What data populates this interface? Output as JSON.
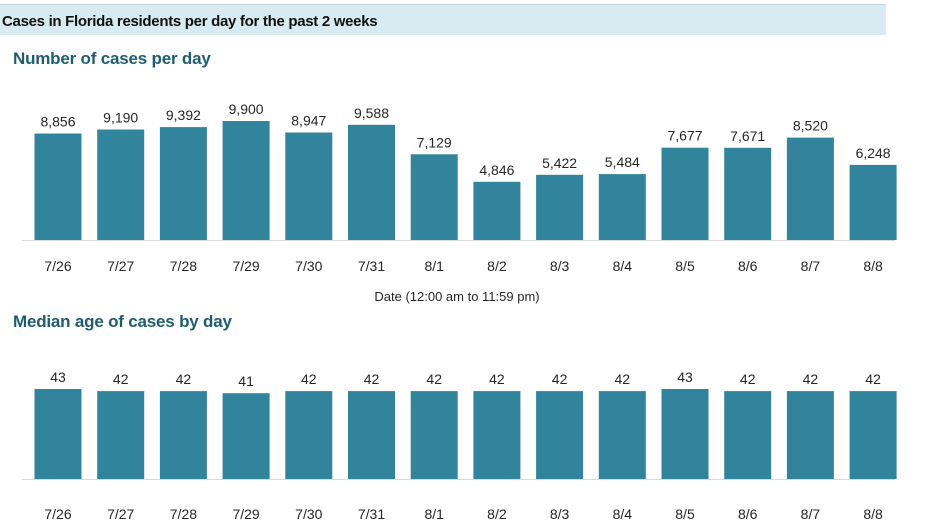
{
  "banner": {
    "title": "Cases in Florida residents per day for the past 2 weeks"
  },
  "chart_data": [
    {
      "type": "bar",
      "title": "Number of cases per day",
      "xlabel": "Date (12:00 am to 11:59 pm)",
      "ylabel": "",
      "categories": [
        "7/26",
        "7/27",
        "7/28",
        "7/29",
        "7/30",
        "7/31",
        "8/1",
        "8/2",
        "8/3",
        "8/4",
        "8/5",
        "8/6",
        "8/7",
        "8/8"
      ],
      "values": [
        8856,
        9190,
        9392,
        9900,
        8947,
        9588,
        7129,
        4846,
        5422,
        5484,
        7677,
        7671,
        8520,
        6248
      ],
      "value_labels": [
        "8,856",
        "9,190",
        "9,392",
        "9,900",
        "8,947",
        "9,588",
        "7,129",
        "4,846",
        "5,422",
        "5,484",
        "7,677",
        "7,671",
        "8,520",
        "6,248"
      ],
      "ylim": [
        0,
        9900
      ],
      "grid": false,
      "color": "#31849b"
    },
    {
      "type": "bar",
      "title": "Median age of cases by day",
      "xlabel": "",
      "ylabel": "",
      "categories": [
        "7/26",
        "7/27",
        "7/28",
        "7/29",
        "7/30",
        "7/31",
        "8/1",
        "8/2",
        "8/3",
        "8/4",
        "8/5",
        "8/6",
        "8/7",
        "8/8"
      ],
      "values": [
        43,
        42,
        42,
        41,
        42,
        42,
        42,
        42,
        42,
        42,
        43,
        42,
        42,
        42
      ],
      "value_labels": [
        "43",
        "42",
        "42",
        "41",
        "42",
        "42",
        "42",
        "42",
        "42",
        "42",
        "43",
        "42",
        "42",
        "42"
      ],
      "ylim": [
        0,
        43
      ],
      "grid": false,
      "color": "#31849b"
    }
  ]
}
